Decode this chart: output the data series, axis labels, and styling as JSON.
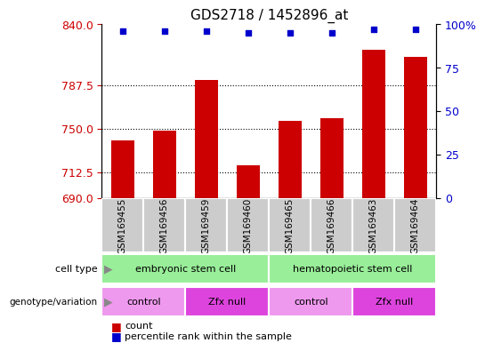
{
  "title": "GDS2718 / 1452896_at",
  "samples": [
    "GSM169455",
    "GSM169456",
    "GSM169459",
    "GSM169460",
    "GSM169465",
    "GSM169466",
    "GSM169463",
    "GSM169464"
  ],
  "bar_values": [
    740,
    748,
    792,
    718,
    757,
    759,
    818,
    812
  ],
  "percentile_values": [
    96,
    96,
    96,
    95,
    95,
    95,
    97,
    97
  ],
  "ylim_left": [
    690,
    840
  ],
  "ylim_right": [
    0,
    100
  ],
  "yticks_left": [
    690,
    712.5,
    750,
    787.5,
    840
  ],
  "yticks_right": [
    0,
    25,
    50,
    75,
    100
  ],
  "bar_color": "#cc0000",
  "dot_color": "#0000cc",
  "cell_type_color": "#99ee99",
  "geno_control_color": "#ee99ee",
  "geno_null_color": "#dd44dd",
  "cell_type_groups": [
    {
      "label": "embryonic stem cell",
      "start": 0,
      "end": 4
    },
    {
      "label": "hematopoietic stem cell",
      "start": 4,
      "end": 8
    }
  ],
  "genotype_groups": [
    {
      "label": "control",
      "start": 0,
      "end": 2,
      "type": "control"
    },
    {
      "label": "Zfx null",
      "start": 2,
      "end": 4,
      "type": "null"
    },
    {
      "label": "control",
      "start": 4,
      "end": 6,
      "type": "control"
    },
    {
      "label": "Zfx null",
      "start": 6,
      "end": 8,
      "type": "null"
    }
  ],
  "ylabel_left_color": "#cc0000",
  "ylabel_right_color": "#0000cc",
  "title_fontsize": 11,
  "tick_fontsize": 9,
  "bar_width": 0.55,
  "sample_box_color": "#cccccc",
  "label_fontsize": 8,
  "row_label_color": "#333333"
}
